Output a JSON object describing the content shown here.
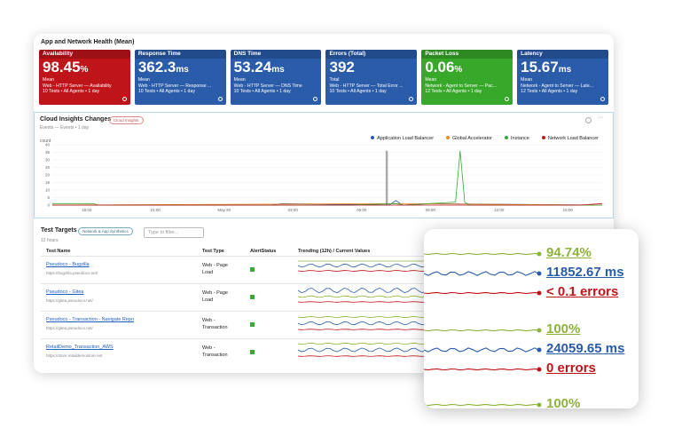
{
  "health": {
    "title": "App and Network Health (Mean)",
    "tiles": [
      {
        "name": "Availability",
        "value": "98.45",
        "unit": "%",
        "stat": "Mean",
        "desc": "Web - HTTP Server — Availability",
        "meta": "10 Tests • All Agents • 1 day",
        "color": "#c0141b"
      },
      {
        "name": "Response Time",
        "value": "362.3",
        "unit": "ms",
        "stat": "Mean",
        "desc": "Web - HTTP Server — Response ...",
        "meta": "10 Tests • All Agents • 1 day",
        "color": "#2a5caa"
      },
      {
        "name": "DNS Time",
        "value": "53.24",
        "unit": "ms",
        "stat": "Mean",
        "desc": "Web - HTTP Server — DNS Time",
        "meta": "10 Tests • All Agents • 1 day",
        "color": "#2a5caa"
      },
      {
        "name": "Errors (Total)",
        "value": "392",
        "unit": "",
        "stat": "Total",
        "desc": "Web - HTTP Server — Total Error ...",
        "meta": "10 Tests • All Agents • 1 day",
        "color": "#2a5caa"
      },
      {
        "name": "Packet Loss",
        "value": "0.06",
        "unit": "%",
        "stat": "Mean",
        "desc": "Network - Agent to Server — Pac...",
        "meta": "12 Tests • All Agents • 1 day",
        "color": "#38a82a"
      },
      {
        "name": "Latency",
        "value": "15.67",
        "unit": "ms",
        "stat": "Mean",
        "desc": "Network - Agent to Server — Late...",
        "meta": "12 Tests • All Agents • 1 day",
        "color": "#2a5caa"
      }
    ]
  },
  "changes": {
    "title": "Cloud Insights Changes",
    "badge": "Cloud Insights",
    "subtitle": "Events — Events • 1 day",
    "ylabel": "count",
    "legend": [
      {
        "label": "Application Load Balancer",
        "color": "#2a5caa"
      },
      {
        "label": "Global Accelerator",
        "color": "#e88a2a"
      },
      {
        "label": "Instance",
        "color": "#3aaa35"
      },
      {
        "label": "Network Load Balancer",
        "color": "#c0141b"
      }
    ]
  },
  "chart_data": {
    "type": "line",
    "title": "Cloud Insights Changes",
    "ylabel": "count",
    "ylim": [
      0,
      40
    ],
    "yticks": [
      0,
      5,
      10,
      15,
      20,
      25,
      30,
      35,
      40
    ],
    "xticks": [
      "18:00",
      "21:00",
      "May 20",
      "03:00",
      "06:00",
      "09:00",
      "12:00",
      "15:00"
    ],
    "series": [
      {
        "name": "Application Load Balancer",
        "x": [
          0,
          9.5,
          10,
          14.7,
          15,
          15.3,
          16.5,
          24
        ],
        "values": [
          0,
          0,
          1,
          0,
          3,
          0,
          1,
          0
        ]
      },
      {
        "name": "Global Accelerator",
        "x": [
          0,
          15,
          24
        ],
        "values": [
          0,
          1,
          0
        ]
      },
      {
        "name": "Instance",
        "x": [
          0,
          1.8,
          2,
          13,
          15,
          15.3,
          17.6,
          17.8,
          18,
          18.2,
          24
        ],
        "values": [
          1,
          1,
          0,
          0,
          1,
          0,
          2,
          36,
          2,
          0,
          0
        ]
      },
      {
        "name": "Network Load Balancer",
        "x": [
          0,
          23,
          24
        ],
        "values": [
          0,
          0,
          1
        ]
      }
    ],
    "grid": true,
    "legend_position": "top-right"
  },
  "targets": {
    "title": "Test Targets",
    "badge": "Network & App Synthetics",
    "filter_placeholder": "Type to filter...",
    "period": "12 hours",
    "columns": {
      "name": "Test Name",
      "type": "Test Type",
      "status": "AlertStatus",
      "trend": "Trending (12h) / Current Values"
    },
    "rows": [
      {
        "name": "Pseudoco - Bugzilla",
        "url": "https://bugzilla.pseudoco.net/",
        "type": "Web - Page Load"
      },
      {
        "name": "Pseudoco - Gitea",
        "url": "https://gitea.pseudoco.net/",
        "type": "Web - Page Load"
      },
      {
        "name": "Pseudoco - Transaction - Navigate Repo",
        "url": "https://gitea.pseudoco.net/",
        "type": "Web - Transaction"
      },
      {
        "name": "RetailDemo_Transaction_AWS",
        "url": "https://store.retaildemostore.net",
        "type": "Web - Transaction"
      }
    ]
  },
  "zoom": {
    "values": [
      {
        "text": "94.74%",
        "color": "#8cb33a"
      },
      {
        "text": "11852.67 ms",
        "color": "#2a5caa"
      },
      {
        "text": "< 0.1 errors",
        "color": "#c0141b"
      },
      {
        "text": "100%",
        "color": "#8cb33a"
      },
      {
        "text": "24059.65 ms",
        "color": "#2a5caa"
      },
      {
        "text": "0 errors",
        "color": "#c0141b"
      },
      {
        "text": "100%",
        "color": "#8cb33a"
      }
    ]
  }
}
